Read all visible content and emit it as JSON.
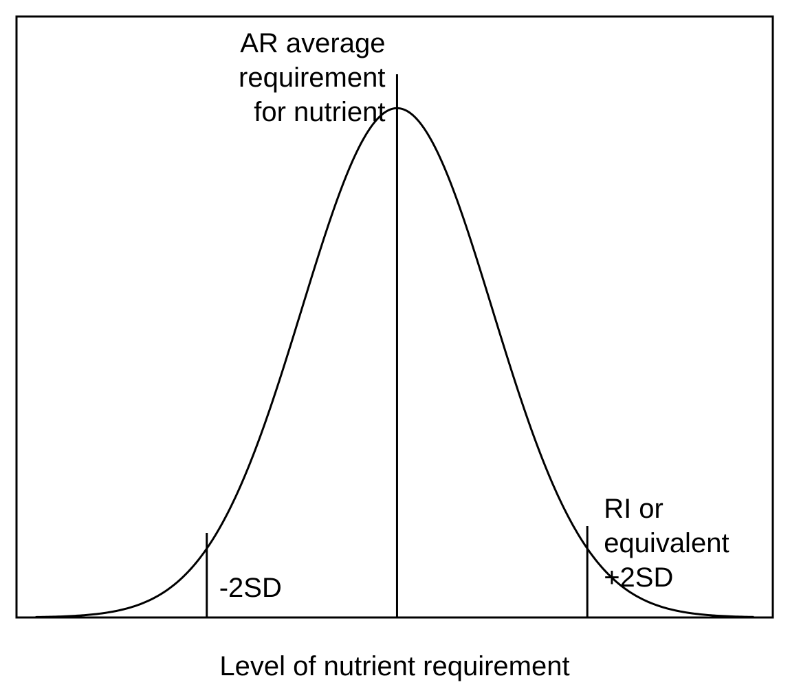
{
  "colors": {
    "background": "#ffffff",
    "line": "#000000"
  },
  "chart_data": {
    "type": "line",
    "title": "",
    "xlabel": "Level of nutrient requirement",
    "ylabel": "",
    "grid": false,
    "legend": "none",
    "distribution": "normal",
    "mean": 0,
    "sd": 1,
    "xlim": [
      -4.0,
      3.95
    ],
    "ylim": [
      0,
      1.18
    ],
    "markers": [
      {
        "x": -2,
        "label_lines": [
          "-2SD"
        ]
      },
      {
        "x": 0,
        "label_lines": [
          "AR  average",
          "requirement",
          "for nutrient"
        ]
      },
      {
        "x": 2,
        "label_lines": [
          "RI  or",
          "equivalent",
          "+2SD"
        ]
      }
    ]
  }
}
